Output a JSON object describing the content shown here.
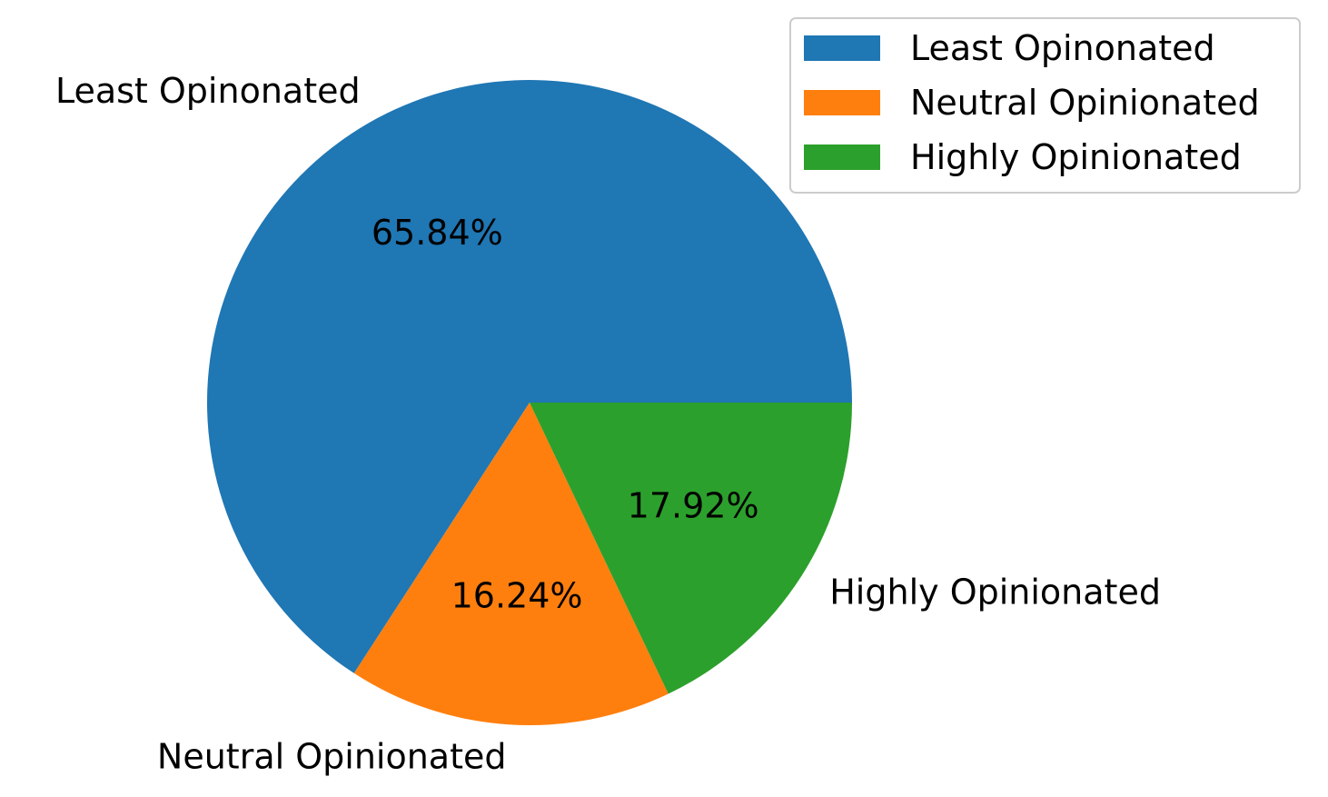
{
  "chart_data": {
    "type": "pie",
    "title": "",
    "slices": [
      {
        "label": "Least Opinonated",
        "value": 65.84,
        "pct_label": "65.84%",
        "color": "#1f77b4"
      },
      {
        "label": "Neutral Opinionated",
        "value": 16.24,
        "pct_label": "16.24%",
        "color": "#ff7f0e"
      },
      {
        "label": "Highly Opinionated",
        "value": 17.92,
        "pct_label": "17.92%",
        "color": "#2ca02c"
      }
    ],
    "start_angle_deg": 0,
    "direction": "counterclockwise",
    "legend": {
      "placement": "top-right",
      "entries": [
        "Least Opinonated",
        "Neutral Opinionated",
        "Highly Opinionated"
      ]
    }
  }
}
